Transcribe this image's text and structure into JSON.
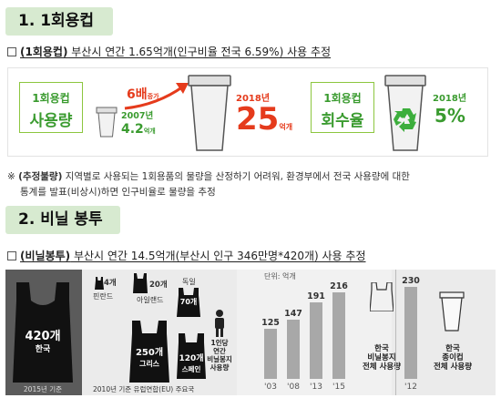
{
  "section1": {
    "title": "1. 1회용컵",
    "line_bold": "(1회용컵)",
    "line_text": " 부산시 연간 1.65억개(인구비율 전국 6.59%) 사용 추정",
    "infographic": {
      "usage_box_line1": "1회용컵",
      "usage_box_line2": "사용량",
      "year_2007": "2007년",
      "value_2007": "4.2",
      "unit_2007": "억개",
      "growth_number": "6배",
      "growth_unit": "증가",
      "year_2018": "2018년",
      "value_2018": "25",
      "unit_2018": "억개",
      "recovery_box_line1": "1회용컵",
      "recovery_box_line2": "회수율",
      "recovery_year": "2018년",
      "recovery_value": "5%"
    }
  },
  "note": {
    "prefix": "※ ",
    "bold": "(추정불량)",
    "line1_rest": " 지역별로 사용되는 1회용품의 물량을 산정하기 어려워, 환경부에서 전국 사용량에 대한",
    "line2": "통계를 발표(비상시)하면 인구비율로 물량을 추정"
  },
  "section2": {
    "title": "2. 비닐 봉투",
    "line_bold": "(비닐봉투)",
    "line_text": " 부산시 연간 14.5억개(부산시 인구 346만명*420개) 사용 추정",
    "infographic": {
      "korea_count": "420개",
      "korea_label": "한국",
      "korea_footer": "2015년 기준",
      "finland_count": "4개",
      "finland_label": "핀란드",
      "ireland_count": "20개",
      "ireland_label": "아일랜드",
      "germany_label": "독일",
      "germany_count": "70개",
      "greece_count": "250개",
      "greece_label": "그리스",
      "spain_count": "120개",
      "spain_label": "스페인",
      "per_person_caption": "1인당\n연간\n비닐봉지\n사용량",
      "eu_footer": "2010년 기준 유럽연합(EU) 주요국",
      "unit_label": "단위: 억개",
      "korea_bag_caption": "한국\n비닐봉지\n전체 사용량",
      "korea_cup_caption": "한국\n종이컵\n전체 사용량"
    }
  },
  "chart_data": [
    {
      "type": "bar",
      "ylabel": "단위: 억개",
      "categories": [
        "'03",
        "'08",
        "'13",
        "'15"
      ],
      "values": [
        125,
        147,
        191,
        216
      ],
      "caption": "한국 비닐봉지 전체 사용량"
    },
    {
      "type": "bar",
      "ylabel": "단위: 억개",
      "categories": [
        "'12"
      ],
      "values": [
        230
      ],
      "caption": "한국 종이컵 전체 사용량"
    }
  ]
}
